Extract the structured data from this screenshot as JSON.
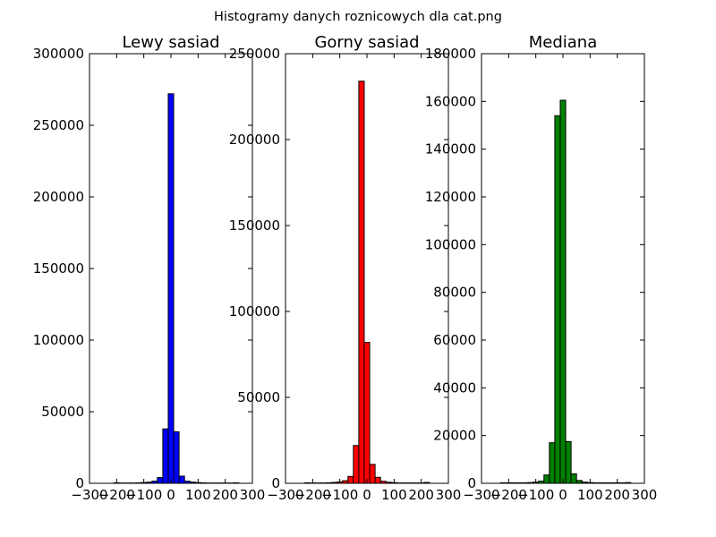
{
  "figure_title": "Histogramy danych roznicowych dla cat.png",
  "chart_data": [
    {
      "type": "bar",
      "title": "Lewy sasiad",
      "color": "#0000ff",
      "xlim": [
        -300,
        300
      ],
      "ylim": [
        0,
        300000
      ],
      "xticks": [
        -300,
        -200,
        -100,
        0,
        100,
        200,
        300
      ],
      "yticks": [
        0,
        50000,
        100000,
        150000,
        200000,
        250000,
        300000
      ],
      "bin_width": 20,
      "x": [
        -200,
        -180,
        -160,
        -140,
        -120,
        -100,
        -80,
        -60,
        -40,
        -20,
        0,
        20,
        40,
        60,
        80,
        100,
        120,
        140,
        160,
        180,
        200,
        220,
        240
      ],
      "values": [
        300,
        200,
        200,
        200,
        300,
        500,
        800,
        1500,
        4000,
        38000,
        272000,
        36000,
        5000,
        1500,
        800,
        500,
        300,
        200,
        200,
        200,
        200,
        200,
        300
      ]
    },
    {
      "type": "bar",
      "title": "Gorny sasiad",
      "color": "#ff0000",
      "xlim": [
        -300,
        300
      ],
      "ylim": [
        0,
        250000
      ],
      "xticks": [
        -300,
        -200,
        -100,
        0,
        100,
        200,
        300
      ],
      "yticks": [
        0,
        50000,
        100000,
        150000,
        200000,
        250000
      ],
      "bin_width": 20,
      "x": [
        -220,
        -200,
        -180,
        -160,
        -140,
        -120,
        -100,
        -80,
        -60,
        -40,
        -20,
        0,
        20,
        40,
        60,
        80,
        100,
        120,
        140,
        160,
        180,
        200,
        220
      ],
      "values": [
        300,
        200,
        200,
        200,
        300,
        500,
        800,
        1500,
        4000,
        22000,
        234000,
        82000,
        11000,
        3500,
        1200,
        600,
        400,
        200,
        200,
        200,
        200,
        200,
        500
      ]
    },
    {
      "type": "bar",
      "title": "Mediana",
      "color": "#008000",
      "xlim": [
        -300,
        300
      ],
      "ylim": [
        0,
        180000
      ],
      "xticks": [
        -300,
        -200,
        -100,
        0,
        100,
        200,
        300
      ],
      "yticks": [
        0,
        20000,
        40000,
        60000,
        80000,
        100000,
        120000,
        140000,
        160000,
        180000
      ],
      "bin_width": 20,
      "x": [
        -220,
        -200,
        -180,
        -160,
        -140,
        -120,
        -100,
        -80,
        -60,
        -40,
        -20,
        0,
        20,
        40,
        60,
        80,
        100,
        120,
        140,
        160,
        180,
        200,
        220,
        240
      ],
      "values": [
        200,
        200,
        200,
        200,
        200,
        300,
        500,
        900,
        3500,
        17000,
        154000,
        160500,
        17500,
        4000,
        1200,
        500,
        300,
        200,
        200,
        200,
        200,
        200,
        200,
        300
      ]
    }
  ]
}
